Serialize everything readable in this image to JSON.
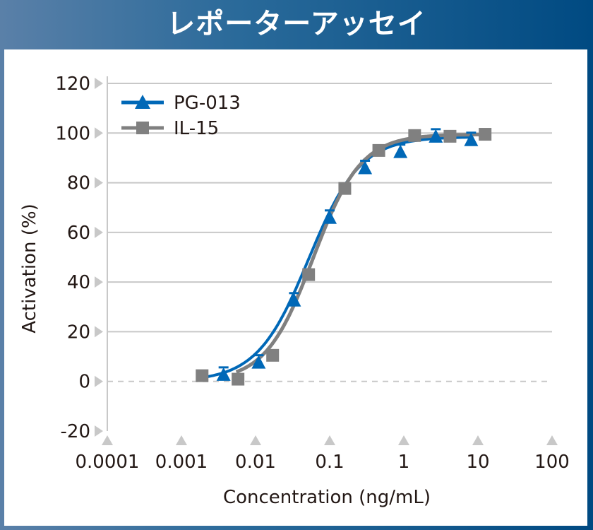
{
  "title": "レポーターアッセイ",
  "chart_data": {
    "type": "line",
    "title": "",
    "xlabel": "Concentration (ng/mL)",
    "ylabel": "Activation (%)",
    "x_scale": "log",
    "xlim": [
      0.0001,
      100
    ],
    "ylim": [
      -20,
      120
    ],
    "x_ticks": [
      "0.0001",
      "0.001",
      "0.01",
      "0.1",
      "1",
      "10",
      "100"
    ],
    "y_ticks": [
      "-20",
      "0",
      "20",
      "40",
      "60",
      "80",
      "100",
      "120"
    ],
    "grid": "horizontal",
    "legend_position": "top-left",
    "series": [
      {
        "name": "PG-013",
        "color": "#0068b7",
        "marker": "triangle",
        "x": [
          0.0037,
          0.011,
          0.033,
          0.1,
          0.3,
          0.9,
          2.7,
          8.1
        ],
        "y": [
          2.8,
          7.7,
          32.7,
          66,
          86,
          92.5,
          98.7,
          97.3
        ]
      },
      {
        "name": "IL-15",
        "color": "#808080",
        "marker": "square",
        "x": [
          0.0019,
          0.0058,
          0.017,
          0.052,
          0.16,
          0.46,
          1.4,
          4.2,
          12.5
        ],
        "y": [
          2.3,
          0.9,
          10.5,
          43,
          77.7,
          93,
          99,
          98.7,
          99.5
        ]
      }
    ]
  }
}
